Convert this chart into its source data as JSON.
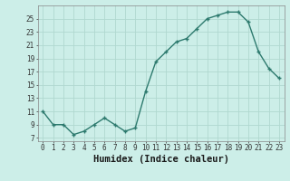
{
  "x": [
    0,
    1,
    2,
    3,
    4,
    5,
    6,
    7,
    8,
    9,
    10,
    11,
    12,
    13,
    14,
    15,
    16,
    17,
    18,
    19,
    20,
    21,
    22,
    23
  ],
  "y": [
    11,
    9,
    9,
    7.5,
    8,
    9,
    10,
    9,
    8,
    8.5,
    14,
    18.5,
    20,
    21.5,
    22,
    23.5,
    25,
    25.5,
    26,
    26,
    24.5,
    20,
    17.5,
    16
  ],
  "line_color": "#2d7a6e",
  "marker": "+",
  "marker_size": 3,
  "xlabel": "Humidex (Indice chaleur)",
  "yticks": [
    7,
    9,
    11,
    13,
    15,
    17,
    19,
    21,
    23,
    25
  ],
  "xlim": [
    -0.5,
    23.5
  ],
  "ylim": [
    6.5,
    27
  ],
  "background_color": "#cceee8",
  "grid_color": "#b0d8d0",
  "xtick_labels": [
    "0",
    "1",
    "2",
    "3",
    "4",
    "5",
    "6",
    "7",
    "8",
    "9",
    "10",
    "11",
    "12",
    "13",
    "14",
    "15",
    "16",
    "17",
    "18",
    "19",
    "20",
    "21",
    "22",
    "23"
  ],
  "tick_fontsize": 5.5,
  "xlabel_fontsize": 7.5
}
